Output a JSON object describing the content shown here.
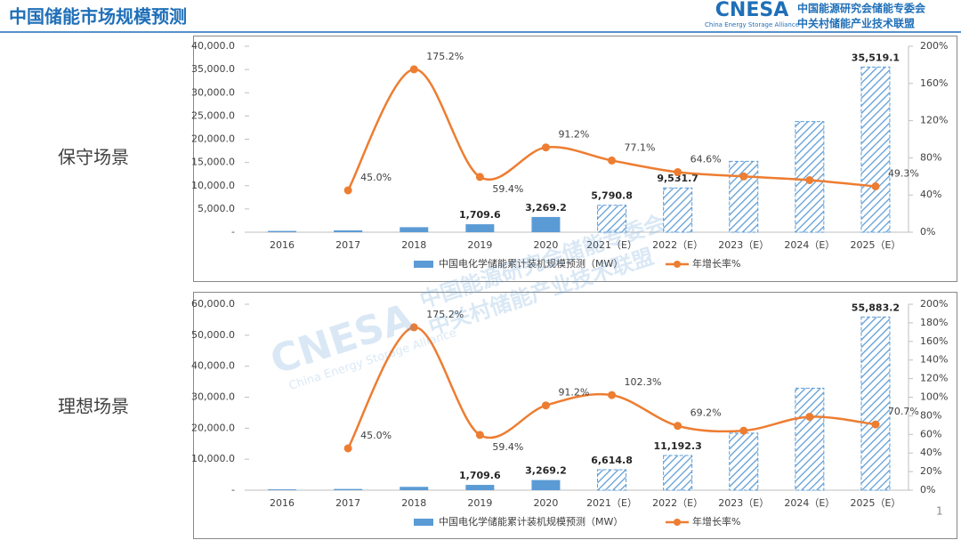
{
  "header": {
    "title": "中国储能市场规模预测",
    "logo": "CNESA",
    "logo_sub": "China Energy Storage Alliance",
    "org_line1": "中国能源研究会储能专委会",
    "org_line2": "中关村储能产业技术联盟"
  },
  "scenarios": [
    "保守场景",
    "理想场景"
  ],
  "watermark": {
    "logo": "CNESA",
    "sub": "China Energy Storage Alliance",
    "line1": "中国能源研究会储能专委会",
    "line2": "中关村储能产业技术联盟"
  },
  "page_number": "1",
  "chart_data": [
    {
      "type": "bar-line",
      "categories": [
        "2016",
        "2017",
        "2018",
        "2019",
        "2020",
        "2021（E）",
        "2022（E）",
        "2023（E）",
        "2024（E）",
        "2025（E）"
      ],
      "series": [
        {
          "name": "中国电化学储能累计装机规模预测（MW）",
          "color": "#5b9bd5",
          "type": "bar",
          "values": [
            268.8,
            389.8,
            1072.7,
            1709.6,
            3269.2,
            5790.8,
            9531.7,
            15250,
            23800,
            35519.1
          ],
          "value_labels": [
            null,
            null,
            null,
            "1,709.6",
            "3,269.2",
            "5,790.8",
            "9,531.7",
            null,
            null,
            "35,519.1"
          ],
          "hatched": [
            false,
            false,
            false,
            false,
            false,
            true,
            true,
            true,
            true,
            true
          ]
        },
        {
          "name": "年增长率%",
          "color": "#ed7d31",
          "type": "line",
          "axis": "y2",
          "values": [
            null,
            45.0,
            175.2,
            59.4,
            91.2,
            77.1,
            64.6,
            60,
            56,
            49.3
          ],
          "value_labels": [
            null,
            "45.0%",
            "175.2%",
            "59.4%",
            "91.2%",
            "77.1%",
            "64.6%",
            null,
            null,
            "49.3%"
          ]
        }
      ],
      "ylim": [
        0,
        40000
      ],
      "yticks": [
        {
          "value": 0,
          "label": "-"
        },
        {
          "value": 5000,
          "label": "5,000.0"
        },
        {
          "value": 10000,
          "label": "10,000.0"
        },
        {
          "value": 15000,
          "label": "15,000.0"
        },
        {
          "value": 20000,
          "label": "20,000.0"
        },
        {
          "value": 25000,
          "label": "25,000.0"
        },
        {
          "value": 30000,
          "label": "30,000.0"
        },
        {
          "value": 35000,
          "label": "35,000.0"
        },
        {
          "value": 40000,
          "label": "40,000.0"
        }
      ],
      "y2lim": [
        0,
        200
      ],
      "y2ticks": [
        {
          "value": 0,
          "label": "0%"
        },
        {
          "value": 40,
          "label": "40%"
        },
        {
          "value": 80,
          "label": "80%"
        },
        {
          "value": 120,
          "label": "120%"
        },
        {
          "value": 160,
          "label": "160%"
        },
        {
          "value": 200,
          "label": "200%"
        }
      ],
      "legend": "bottom"
    },
    {
      "type": "bar-line",
      "categories": [
        "2016",
        "2017",
        "2018",
        "2019",
        "2020",
        "2021（E）",
        "2022（E）",
        "2023（E）",
        "2024（E）",
        "2025（E）"
      ],
      "series": [
        {
          "name": "中国电化学储能累计装机规模预测（MW）",
          "color": "#5b9bd5",
          "type": "bar",
          "values": [
            268.8,
            389.8,
            1072.7,
            1709.6,
            3269.2,
            6614.8,
            11192.3,
            18400,
            32900,
            55883.2
          ],
          "value_labels": [
            null,
            null,
            null,
            "1,709.6",
            "3,269.2",
            "6,614.8",
            "11,192.3",
            null,
            null,
            "55,883.2"
          ],
          "hatched": [
            false,
            false,
            false,
            false,
            false,
            true,
            true,
            true,
            true,
            true
          ]
        },
        {
          "name": "年增长率%",
          "color": "#ed7d31",
          "type": "line",
          "axis": "y2",
          "values": [
            null,
            45.0,
            175.2,
            59.4,
            91.2,
            102.3,
            69.2,
            64,
            79,
            70.7
          ],
          "value_labels": [
            null,
            "45.0%",
            "175.2%",
            "59.4%",
            "91.2%",
            "102.3%",
            "69.2%",
            null,
            null,
            "70.7%"
          ]
        }
      ],
      "ylim": [
        0,
        60000
      ],
      "yticks": [
        {
          "value": 0,
          "label": "-"
        },
        {
          "value": 10000,
          "label": "10,000.0"
        },
        {
          "value": 20000,
          "label": "20,000.0"
        },
        {
          "value": 30000,
          "label": "30,000.0"
        },
        {
          "value": 40000,
          "label": "40,000.0"
        },
        {
          "value": 50000,
          "label": "50,000.0"
        },
        {
          "value": 60000,
          "label": "60,000.0"
        }
      ],
      "y2lim": [
        0,
        200
      ],
      "y2ticks": [
        {
          "value": 0,
          "label": "0%"
        },
        {
          "value": 20,
          "label": "20%"
        },
        {
          "value": 40,
          "label": "40%"
        },
        {
          "value": 60,
          "label": "60%"
        },
        {
          "value": 80,
          "label": "80%"
        },
        {
          "value": 100,
          "label": "100%"
        },
        {
          "value": 120,
          "label": "120%"
        },
        {
          "value": 140,
          "label": "140%"
        },
        {
          "value": 160,
          "label": "160%"
        },
        {
          "value": 180,
          "label": "180%"
        },
        {
          "value": 200,
          "label": "200%"
        }
      ],
      "legend": "bottom"
    }
  ]
}
